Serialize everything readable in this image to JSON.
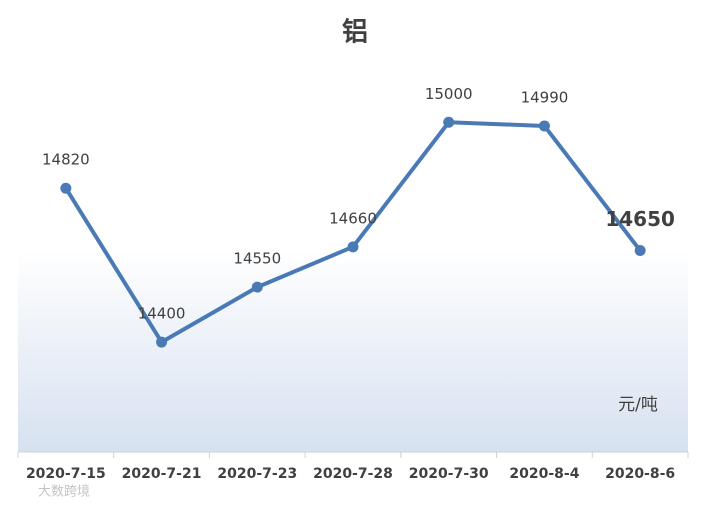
{
  "chart_data": {
    "type": "line",
    "title": "铝",
    "categories": [
      "2020-7-15",
      "2020-7-21",
      "2020-7-23",
      "2020-7-28",
      "2020-7-30",
      "2020-8-4",
      "2020-8-6"
    ],
    "values": [
      14820,
      14400,
      14550,
      14660,
      15000,
      14990,
      14650
    ],
    "color": "#4a7ab5",
    "ylim": [
      14100,
      15170
    ],
    "unit": "元/吨",
    "watermark": "大数跨境"
  }
}
